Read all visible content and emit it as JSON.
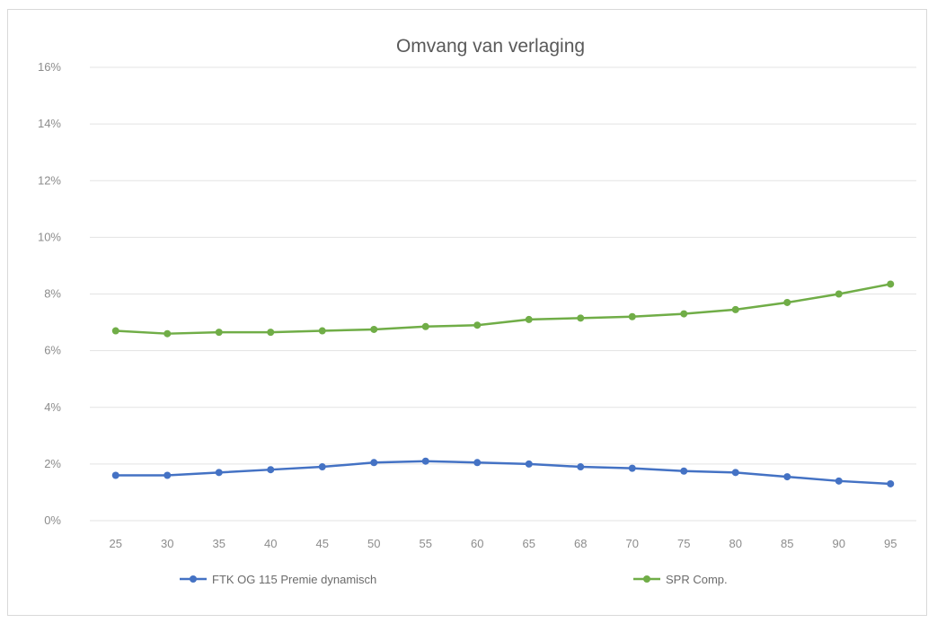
{
  "chart_data": {
    "type": "line",
    "title": "Omvang van verlaging",
    "xlabel": "",
    "ylabel": "",
    "categories": [
      "25",
      "30",
      "35",
      "40",
      "45",
      "50",
      "55",
      "60",
      "65",
      "68",
      "70",
      "75",
      "80",
      "85",
      "90",
      "95"
    ],
    "ylim": [
      0,
      16
    ],
    "yticks": [
      0,
      2,
      4,
      6,
      8,
      10,
      12,
      14,
      16
    ],
    "ytick_labels": [
      "0%",
      "2%",
      "4%",
      "6%",
      "8%",
      "10%",
      "12%",
      "14%",
      "16%"
    ],
    "grid": true,
    "legend_position": "bottom",
    "series": [
      {
        "name": "FTK OG 115 Premie dynamisch",
        "color": "#4472c4",
        "values": [
          1.6,
          1.6,
          1.7,
          1.8,
          1.9,
          2.05,
          2.1,
          2.05,
          2.0,
          1.9,
          1.85,
          1.75,
          1.7,
          1.55,
          1.4,
          1.3
        ]
      },
      {
        "name": "SPR Comp.",
        "color": "#70ad47",
        "values": [
          6.7,
          6.6,
          6.65,
          6.65,
          6.7,
          6.75,
          6.85,
          6.9,
          7.1,
          7.15,
          7.2,
          7.3,
          7.45,
          7.7,
          8.0,
          8.35
        ]
      }
    ]
  }
}
